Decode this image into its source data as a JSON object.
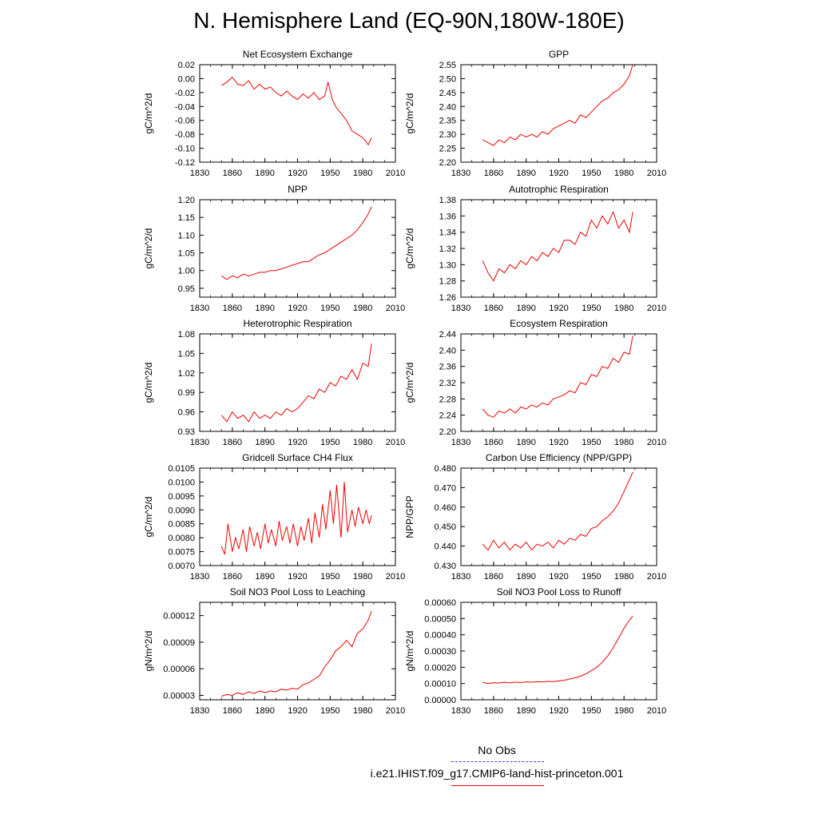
{
  "page": {
    "title": "N. Hemisphere Land (EQ-90N,180W-180E)"
  },
  "legend": {
    "obs_label": "No Obs",
    "case_label": "i.e21.IHIST.f09_g17.CMIP6-land-hist-princeton.001",
    "colors": {
      "obs": "#4444dd",
      "case": "#ee0000"
    }
  },
  "x_ticks": [
    "1830",
    "1860",
    "1890",
    "1920",
    "1950",
    "1980",
    "2010"
  ],
  "chart_data": [
    {
      "type": "line",
      "title": "Net Ecosystem Exchange",
      "xlabel": "",
      "ylabel": "gC/m^2/d",
      "xlim": [
        1830,
        2010
      ],
      "ylim": [
        -0.12,
        0.02
      ],
      "y_ticks": [
        "-0.12",
        "-0.10",
        "-0.08",
        "-0.06",
        "-0.04",
        "-0.02",
        "0.00",
        "0.02"
      ],
      "series": [
        {
          "color": "#ee0000",
          "x": [
            1850,
            1855,
            1860,
            1865,
            1870,
            1875,
            1880,
            1885,
            1890,
            1895,
            1900,
            1905,
            1910,
            1915,
            1920,
            1925,
            1930,
            1935,
            1940,
            1945,
            1948,
            1952,
            1955,
            1960,
            1965,
            1970,
            1975,
            1980,
            1985,
            1988
          ],
          "y": [
            -0.01,
            -0.005,
            0.002,
            -0.008,
            -0.01,
            -0.003,
            -0.015,
            -0.008,
            -0.015,
            -0.012,
            -0.02,
            -0.025,
            -0.018,
            -0.025,
            -0.03,
            -0.022,
            -0.028,
            -0.02,
            -0.03,
            -0.025,
            -0.005,
            -0.03,
            -0.04,
            -0.05,
            -0.06,
            -0.075,
            -0.08,
            -0.085,
            -0.095,
            -0.085
          ]
        }
      ]
    },
    {
      "type": "line",
      "title": "GPP",
      "xlabel": "",
      "ylabel": "gC/m^2/d",
      "xlim": [
        1830,
        2010
      ],
      "ylim": [
        2.2,
        2.55
      ],
      "y_ticks": [
        "2.20",
        "2.25",
        "2.30",
        "2.35",
        "2.40",
        "2.45",
        "2.50",
        "2.55"
      ],
      "series": [
        {
          "color": "#ee0000",
          "x": [
            1850,
            1855,
            1860,
            1865,
            1870,
            1875,
            1880,
            1885,
            1890,
            1895,
            1900,
            1905,
            1910,
            1915,
            1920,
            1925,
            1930,
            1935,
            1940,
            1945,
            1950,
            1955,
            1960,
            1965,
            1970,
            1975,
            1980,
            1985,
            1988
          ],
          "y": [
            2.28,
            2.27,
            2.26,
            2.28,
            2.27,
            2.29,
            2.28,
            2.3,
            2.29,
            2.3,
            2.29,
            2.31,
            2.3,
            2.32,
            2.33,
            2.34,
            2.35,
            2.34,
            2.37,
            2.36,
            2.38,
            2.4,
            2.42,
            2.43,
            2.45,
            2.46,
            2.48,
            2.51,
            2.55
          ]
        }
      ]
    },
    {
      "type": "line",
      "title": "NPP",
      "xlabel": "",
      "ylabel": "gC/m^2/d",
      "xlim": [
        1830,
        2010
      ],
      "ylim": [
        0.925,
        1.2
      ],
      "y_ticks": [
        "0.95",
        "1.00",
        "1.05",
        "1.10",
        "1.15",
        "1.20"
      ],
      "series": [
        {
          "color": "#ee0000",
          "x": [
            1850,
            1855,
            1860,
            1865,
            1870,
            1875,
            1880,
            1885,
            1890,
            1895,
            1900,
            1905,
            1910,
            1915,
            1920,
            1925,
            1930,
            1935,
            1940,
            1945,
            1950,
            1955,
            1960,
            1965,
            1970,
            1975,
            1980,
            1985,
            1988
          ],
          "y": [
            0.985,
            0.975,
            0.985,
            0.98,
            0.99,
            0.985,
            0.99,
            0.995,
            0.995,
            1.0,
            1.0,
            1.005,
            1.01,
            1.015,
            1.02,
            1.025,
            1.025,
            1.035,
            1.045,
            1.05,
            1.06,
            1.07,
            1.08,
            1.09,
            1.1,
            1.115,
            1.135,
            1.16,
            1.18
          ]
        }
      ]
    },
    {
      "type": "line",
      "title": "Autotrophic Respiration",
      "xlabel": "",
      "ylabel": "gC/m^2/d",
      "xlim": [
        1830,
        2010
      ],
      "ylim": [
        1.26,
        1.38
      ],
      "y_ticks": [
        "1.26",
        "1.28",
        "1.30",
        "1.32",
        "1.34",
        "1.36",
        "1.38"
      ],
      "series": [
        {
          "color": "#ee0000",
          "x": [
            1850,
            1855,
            1860,
            1865,
            1870,
            1875,
            1880,
            1885,
            1890,
            1895,
            1900,
            1905,
            1910,
            1915,
            1920,
            1925,
            1930,
            1935,
            1940,
            1945,
            1950,
            1955,
            1960,
            1965,
            1970,
            1975,
            1980,
            1985,
            1988
          ],
          "y": [
            1.305,
            1.29,
            1.28,
            1.295,
            1.29,
            1.3,
            1.295,
            1.305,
            1.3,
            1.31,
            1.305,
            1.315,
            1.31,
            1.32,
            1.315,
            1.33,
            1.33,
            1.325,
            1.34,
            1.335,
            1.355,
            1.345,
            1.36,
            1.35,
            1.365,
            1.345,
            1.355,
            1.34,
            1.365
          ]
        }
      ]
    },
    {
      "type": "line",
      "title": "Heterotrophic Respiration",
      "xlabel": "",
      "ylabel": "gC/m^2/d",
      "xlim": [
        1830,
        2010
      ],
      "ylim": [
        0.93,
        1.08
      ],
      "y_ticks": [
        "0.93",
        "0.96",
        "0.99",
        "1.02",
        "1.05",
        "1.08"
      ],
      "series": [
        {
          "color": "#ee0000",
          "x": [
            1850,
            1855,
            1860,
            1865,
            1870,
            1875,
            1880,
            1885,
            1890,
            1895,
            1900,
            1905,
            1910,
            1915,
            1920,
            1925,
            1930,
            1935,
            1940,
            1945,
            1950,
            1955,
            1960,
            1965,
            1970,
            1975,
            1980,
            1985,
            1988
          ],
          "y": [
            0.955,
            0.945,
            0.96,
            0.95,
            0.955,
            0.945,
            0.96,
            0.95,
            0.955,
            0.95,
            0.96,
            0.955,
            0.965,
            0.96,
            0.965,
            0.975,
            0.985,
            0.98,
            0.995,
            0.99,
            1.005,
            1.0,
            1.015,
            1.01,
            1.025,
            1.01,
            1.035,
            1.03,
            1.065
          ]
        }
      ]
    },
    {
      "type": "line",
      "title": "Ecosystem Respiration",
      "xlabel": "",
      "ylabel": "gC/m^2/d",
      "xlim": [
        1830,
        2010
      ],
      "ylim": [
        2.2,
        2.44
      ],
      "y_ticks": [
        "2.20",
        "2.24",
        "2.28",
        "2.32",
        "2.36",
        "2.40",
        "2.44"
      ],
      "series": [
        {
          "color": "#ee0000",
          "x": [
            1850,
            1855,
            1860,
            1865,
            1870,
            1875,
            1880,
            1885,
            1890,
            1895,
            1900,
            1905,
            1910,
            1915,
            1920,
            1925,
            1930,
            1935,
            1940,
            1945,
            1950,
            1955,
            1960,
            1965,
            1970,
            1975,
            1980,
            1985,
            1988
          ],
          "y": [
            2.255,
            2.24,
            2.235,
            2.25,
            2.245,
            2.255,
            2.245,
            2.26,
            2.255,
            2.265,
            2.26,
            2.27,
            2.265,
            2.28,
            2.285,
            2.29,
            2.3,
            2.295,
            2.32,
            2.315,
            2.34,
            2.335,
            2.36,
            2.355,
            2.38,
            2.37,
            2.395,
            2.39,
            2.435
          ]
        }
      ]
    },
    {
      "type": "line",
      "title": "Gridcell Surface CH4 Flux",
      "xlabel": "",
      "ylabel": "gC/m^2/d",
      "xlim": [
        1830,
        2010
      ],
      "ylim": [
        0.007,
        0.0105
      ],
      "y_ticks": [
        "0.0070",
        "0.0075",
        "0.0080",
        "0.0085",
        "0.0090",
        "0.0095",
        "0.0100",
        "0.0105"
      ],
      "series": [
        {
          "color": "#ee0000",
          "x": [
            1850,
            1853,
            1856,
            1860,
            1863,
            1866,
            1870,
            1873,
            1876,
            1880,
            1883,
            1886,
            1890,
            1893,
            1896,
            1900,
            1903,
            1906,
            1910,
            1913,
            1916,
            1920,
            1923,
            1926,
            1930,
            1933,
            1936,
            1940,
            1943,
            1946,
            1950,
            1953,
            1956,
            1960,
            1963,
            1966,
            1970,
            1973,
            1976,
            1980,
            1983,
            1986,
            1988
          ],
          "y": [
            0.0077,
            0.0074,
            0.0085,
            0.0075,
            0.008,
            0.0076,
            0.0083,
            0.0075,
            0.0084,
            0.0077,
            0.0082,
            0.0076,
            0.0085,
            0.0078,
            0.0083,
            0.0077,
            0.0086,
            0.0079,
            0.0084,
            0.0078,
            0.0085,
            0.0077,
            0.0084,
            0.0079,
            0.0087,
            0.0078,
            0.0089,
            0.008,
            0.0092,
            0.0083,
            0.0097,
            0.0085,
            0.0099,
            0.008,
            0.01,
            0.0082,
            0.009,
            0.0084,
            0.0091,
            0.0085,
            0.009,
            0.0085,
            0.0088
          ]
        }
      ]
    },
    {
      "type": "line",
      "title": "Carbon Use Efficiency (NPP/GPP)",
      "xlabel": "",
      "ylabel": "NPP/GPP",
      "xlim": [
        1830,
        2010
      ],
      "ylim": [
        0.43,
        0.48
      ],
      "y_ticks": [
        "0.430",
        "0.440",
        "0.450",
        "0.460",
        "0.470",
        "0.480"
      ],
      "series": [
        {
          "color": "#ee0000",
          "x": [
            1850,
            1855,
            1860,
            1865,
            1870,
            1875,
            1880,
            1885,
            1890,
            1895,
            1900,
            1905,
            1910,
            1915,
            1920,
            1925,
            1930,
            1935,
            1940,
            1945,
            1950,
            1955,
            1960,
            1965,
            1970,
            1975,
            1980,
            1985,
            1988
          ],
          "y": [
            0.441,
            0.438,
            0.443,
            0.439,
            0.442,
            0.438,
            0.441,
            0.439,
            0.442,
            0.438,
            0.441,
            0.44,
            0.442,
            0.439,
            0.443,
            0.441,
            0.444,
            0.443,
            0.446,
            0.445,
            0.449,
            0.45,
            0.453,
            0.455,
            0.458,
            0.462,
            0.468,
            0.474,
            0.478
          ]
        }
      ]
    },
    {
      "type": "line",
      "title": "Soil NO3 Pool Loss to Leaching",
      "xlabel": "",
      "ylabel": "gN/m^2/d",
      "xlim": [
        1830,
        2010
      ],
      "ylim": [
        2.5e-05,
        0.000135
      ],
      "y_ticks": [
        "0.00003",
        "0.00006",
        "0.00009",
        "0.00012"
      ],
      "series": [
        {
          "color": "#ee0000",
          "x": [
            1850,
            1855,
            1860,
            1865,
            1870,
            1875,
            1880,
            1885,
            1890,
            1895,
            1900,
            1905,
            1910,
            1915,
            1920,
            1925,
            1930,
            1935,
            1940,
            1945,
            1950,
            1955,
            1960,
            1965,
            1970,
            1975,
            1980,
            1985,
            1988
          ],
          "y": [
            2.9e-05,
            3.1e-05,
            3e-05,
            3.3e-05,
            3.1e-05,
            3.4e-05,
            3.2e-05,
            3.5e-05,
            3.3e-05,
            3.5e-05,
            3.4e-05,
            3.7e-05,
            3.6e-05,
            3.8e-05,
            3.7e-05,
            4.2e-05,
            4.4e-05,
            4.8e-05,
            5.2e-05,
            6.2e-05,
            7e-05,
            8e-05,
            8.5e-05,
            9.2e-05,
            8.5e-05,
            0.0001,
            0.000105,
            0.000115,
            0.000125
          ]
        }
      ]
    },
    {
      "type": "line",
      "title": "Soil NO3 Pool Loss to Runoff",
      "xlabel": "",
      "ylabel": "gN/m^2/d",
      "xlim": [
        1830,
        2010
      ],
      "ylim": [
        0.0,
        0.0006
      ],
      "y_ticks": [
        "0.00000",
        "0.00010",
        "0.00020",
        "0.00030",
        "0.00040",
        "0.00050",
        "0.00060"
      ],
      "series": [
        {
          "color": "#ee0000",
          "x": [
            1850,
            1855,
            1860,
            1865,
            1870,
            1875,
            1880,
            1885,
            1890,
            1895,
            1900,
            1905,
            1910,
            1915,
            1920,
            1925,
            1930,
            1935,
            1940,
            1945,
            1950,
            1955,
            1960,
            1965,
            1970,
            1975,
            1980,
            1985,
            1988
          ],
          "y": [
            0.000108,
            0.0001,
            0.000105,
            0.000103,
            0.000108,
            0.000104,
            0.000108,
            0.000106,
            0.00011,
            0.000108,
            0.000111,
            0.00011,
            0.000113,
            0.000112,
            0.000116,
            0.00012,
            0.000128,
            0.000135,
            0.000145,
            0.00016,
            0.00018,
            0.0002,
            0.00023,
            0.00027,
            0.00032,
            0.00038,
            0.00044,
            0.00049,
            0.000515
          ]
        }
      ]
    }
  ]
}
